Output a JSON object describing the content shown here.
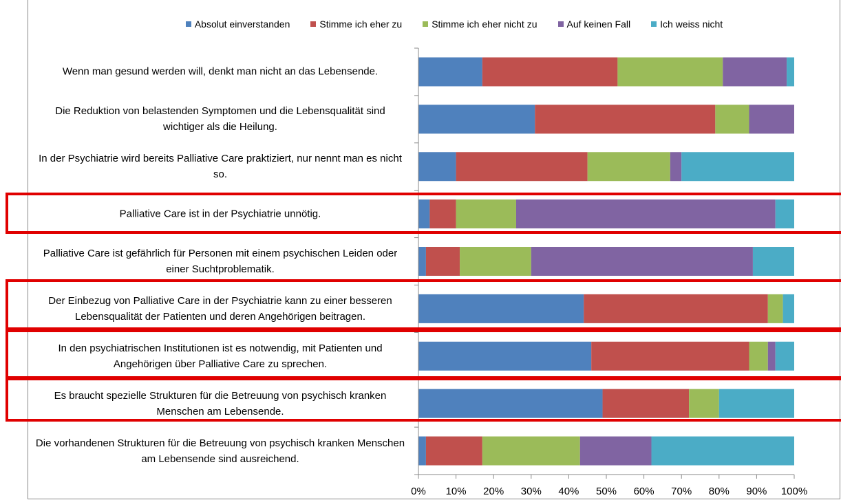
{
  "chart_data": {
    "type": "stacked-barh",
    "categories": [
      "Wenn man gesund werden will, denkt man nicht an das Lebensende.",
      "Die Reduktion von belastenden Symptomen und die Lebensqualität sind wichtiger als die Heilung.",
      "In der Psychiatrie wird bereits Palliative Care praktiziert, nur nennt man es nicht so.",
      "Palliative Care ist in der Psychiatrie unnötig.",
      "Palliative Care ist gefährlich für Personen mit einem psychischen Leiden oder einer Suchtproblematik.",
      "Der Einbezug von Palliative Care in der Psychiatrie kann zu einer besseren Lebensqualität der Patienten und deren Angehörigen beitragen.",
      "In den psychiatrischen Institutionen ist es notwendig, mit Patienten und Angehörigen über Palliative Care zu sprechen.",
      "Es braucht spezielle Strukturen für die Betreuung von psychisch kranken Menschen am Lebensende.",
      "Die vorhandenen Strukturen für die Betreuung von psychisch kranken Menschen am Lebensende sind ausreichend."
    ],
    "series": [
      {
        "name": "Absolut einverstanden",
        "color": "#4f81bd",
        "values": [
          17,
          31,
          10,
          3,
          2,
          44,
          46,
          49,
          2
        ]
      },
      {
        "name": "Stimme ich eher zu",
        "color": "#c0504d",
        "values": [
          36,
          48,
          35,
          7,
          9,
          49,
          42,
          23,
          15
        ]
      },
      {
        "name": "Stimme ich eher nicht zu",
        "color": "#9bbb59",
        "values": [
          28,
          9,
          22,
          16,
          19,
          4,
          5,
          8,
          26
        ]
      },
      {
        "name": "Auf keinen Fall",
        "color": "#8064a2",
        "values": [
          17,
          12,
          3,
          69,
          59,
          0,
          2,
          0,
          19
        ]
      },
      {
        "name": "Ich weiss nicht",
        "color": "#4bacc6",
        "values": [
          2,
          0,
          30,
          5,
          11,
          3,
          5,
          20,
          38
        ]
      }
    ],
    "xlim": [
      0,
      100
    ],
    "xticks": [
      {
        "value": 0,
        "label": "0%"
      },
      {
        "value": 10,
        "label": "10%"
      },
      {
        "value": 20,
        "label": "20%"
      },
      {
        "value": 30,
        "label": "30%"
      },
      {
        "value": 40,
        "label": "40%"
      },
      {
        "value": 50,
        "label": "50%"
      },
      {
        "value": 60,
        "label": "60%"
      },
      {
        "value": 70,
        "label": "70%"
      },
      {
        "value": 80,
        "label": "80%"
      },
      {
        "value": 90,
        "label": "90%"
      },
      {
        "value": 100,
        "label": "100%"
      }
    ],
    "grid": false
  }
}
